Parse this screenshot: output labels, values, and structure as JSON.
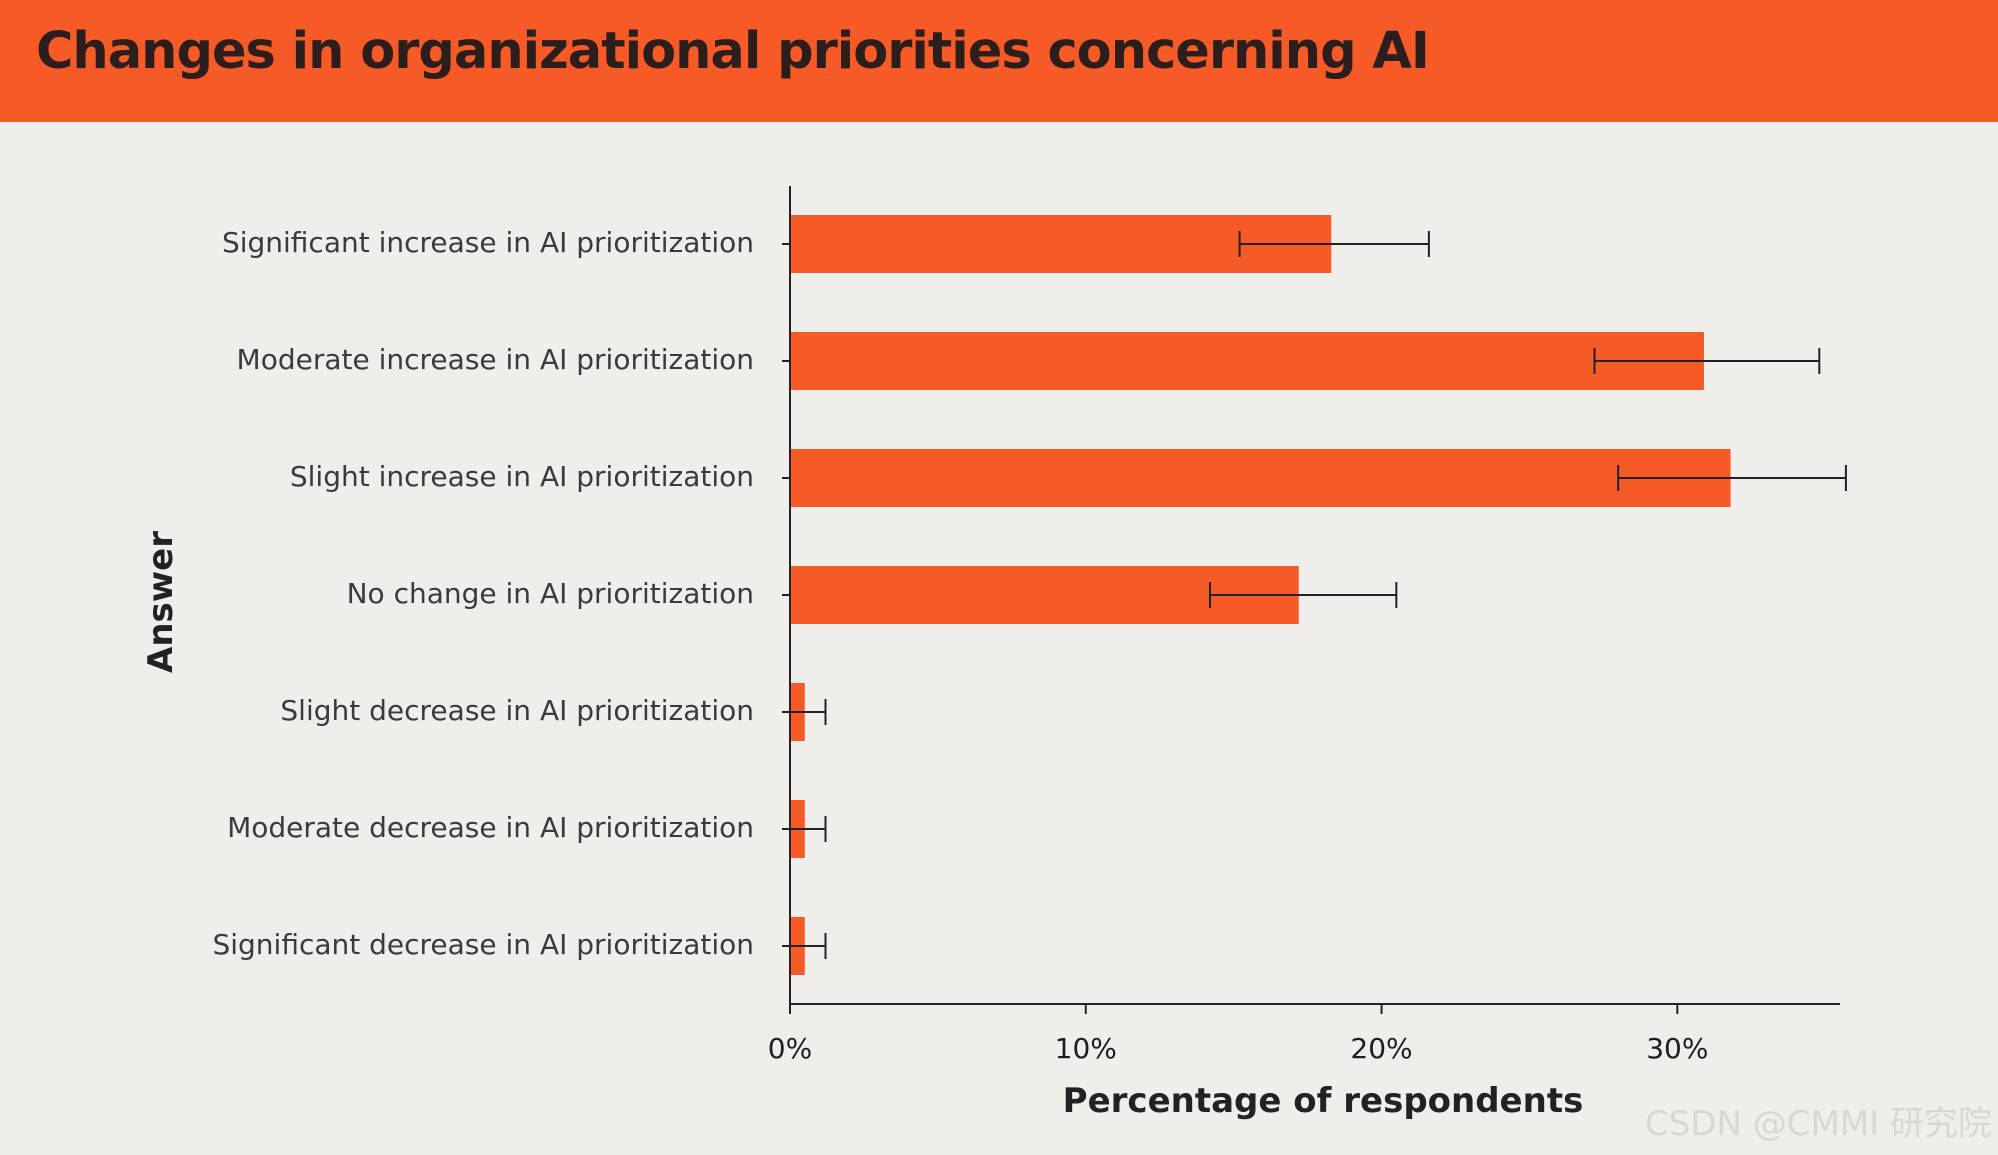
{
  "header": {
    "title": "Changes in organizational priorities concerning AI"
  },
  "watermark": "CSDN @CMMI 研究院",
  "colors": {
    "bar": "#f55a27",
    "header": "#f55a27",
    "background": "#efeeeb",
    "text": "#3b3b3b"
  },
  "chart_data": {
    "type": "bar",
    "orientation": "horizontal",
    "title": "Changes in organizational priorities concerning AI",
    "xlabel": "Percentage of respondents",
    "ylabel": "Answer",
    "xlim": [
      0,
      35.5
    ],
    "xticks": [
      {
        "value": 0,
        "label": "0%"
      },
      {
        "value": 10,
        "label": "10%"
      },
      {
        "value": 20,
        "label": "20%"
      },
      {
        "value": 30,
        "label": "30%"
      }
    ],
    "categories": [
      "Significant increase in AI prioritization",
      "Moderate increase in AI prioritization",
      "Slight increase in AI prioritization",
      "No change in AI prioritization",
      "Slight decrease in AI prioritization",
      "Moderate decrease in AI prioritization",
      "Significant decrease in AI prioritization"
    ],
    "values": [
      18.3,
      30.9,
      31.8,
      17.2,
      0.5,
      0.5,
      0.5
    ],
    "error_low": [
      15.2,
      27.2,
      28.0,
      14.2,
      0.0,
      0.0,
      0.0
    ],
    "error_high": [
      21.6,
      34.8,
      35.7,
      20.5,
      1.2,
      1.2,
      1.2
    ]
  }
}
